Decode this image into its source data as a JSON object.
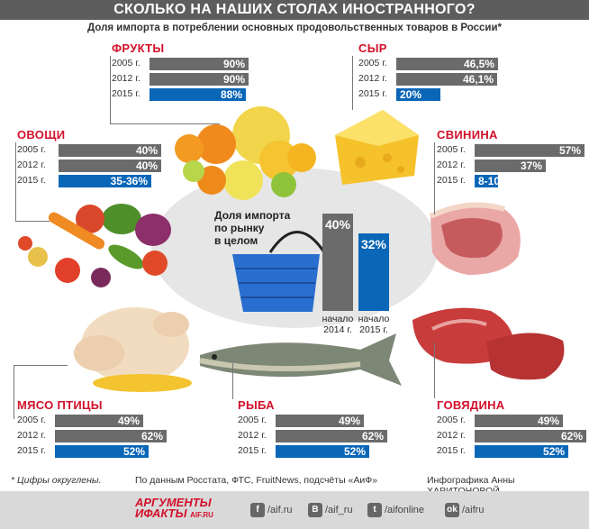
{
  "header": {
    "title": "СКОЛЬКО НА НАШИХ СТОЛАХ ИНОСТРАННОГО?",
    "subtitle": "Доля импорта в потреблении основных продовольственных товаров в России*"
  },
  "chart_data": [
    {
      "type": "bar",
      "name": "ФРУКТЫ",
      "categories": [
        "2005 г.",
        "2012 г.",
        "2015 г."
      ],
      "values": [
        90,
        90,
        88
      ],
      "labels": [
        "90%",
        "90%",
        "88%"
      ],
      "colors": [
        "#6b6b6b",
        "#6b6b6b",
        "#0a66b7"
      ],
      "xlim": [
        0,
        100
      ]
    },
    {
      "type": "bar",
      "name": "СЫР",
      "categories": [
        "2005 г.",
        "2012 г.",
        "2015 г."
      ],
      "values": [
        46.5,
        46.1,
        20
      ],
      "labels": [
        "46,5%",
        "46,1%",
        "20%"
      ],
      "colors": [
        "#6b6b6b",
        "#6b6b6b",
        "#0a66b7"
      ],
      "xlim": [
        0,
        50
      ]
    },
    {
      "type": "bar",
      "name": "ОВОЩИ",
      "categories": [
        "2005 г.",
        "2012 г.",
        "2015 г."
      ],
      "values": [
        40,
        40,
        36
      ],
      "labels": [
        "40%",
        "40%",
        "35-36%"
      ],
      "colors": [
        "#6b6b6b",
        "#6b6b6b",
        "#0a66b7"
      ],
      "xlim": [
        0,
        40
      ]
    },
    {
      "type": "bar",
      "name": "СВИНИНА",
      "categories": [
        "2005 г.",
        "2012 г.",
        "2015 г."
      ],
      "values": [
        57,
        37,
        10
      ],
      "labels": [
        "57%",
        "37%",
        "8-10%"
      ],
      "colors": [
        "#6b6b6b",
        "#6b6b6b",
        "#0a66b7"
      ],
      "xlim": [
        0,
        57
      ]
    },
    {
      "type": "bar",
      "name": "МЯСО ПТИЦЫ",
      "categories": [
        "2005 г.",
        "2012 г.",
        "2015 г."
      ],
      "values": [
        49,
        62,
        52
      ],
      "labels": [
        "49%",
        "62%",
        "52%"
      ],
      "colors": [
        "#6b6b6b",
        "#6b6b6b",
        "#0a66b7"
      ],
      "xlim": [
        0,
        62
      ]
    },
    {
      "type": "bar",
      "name": "РЫБА",
      "categories": [
        "2005 г.",
        "2012 г.",
        "2015 г."
      ],
      "values": [
        49,
        62,
        52
      ],
      "labels": [
        "49%",
        "62%",
        "52%"
      ],
      "colors": [
        "#6b6b6b",
        "#6b6b6b",
        "#0a66b7"
      ],
      "xlim": [
        0,
        62
      ]
    },
    {
      "type": "bar",
      "name": "ГОВЯДИНА",
      "categories": [
        "2005 г.",
        "2012 г.",
        "2015 г."
      ],
      "values": [
        49,
        62,
        52
      ],
      "labels": [
        "49%",
        "62%",
        "52%"
      ],
      "colors": [
        "#6b6b6b",
        "#6b6b6b",
        "#0a66b7"
      ],
      "xlim": [
        0,
        62
      ]
    },
    {
      "type": "bar",
      "name": "Доля импорта по рынку в целом",
      "categories": [
        "начало 2014 г.",
        "начало 2015 г."
      ],
      "values": [
        40,
        32
      ],
      "labels": [
        "40%",
        "32%"
      ],
      "colors": [
        "#6b6b6b",
        "#0a66b7"
      ],
      "ylim": [
        0,
        40
      ]
    }
  ],
  "center": {
    "label_lines": [
      "Доля импорта",
      "по рынку",
      "в целом"
    ],
    "bar_labels": [
      [
        "начало",
        "2014 г."
      ],
      [
        "начало",
        "2015 г."
      ]
    ]
  },
  "footer": {
    "note": "* Цифры округлены.",
    "source": "По данным Росстата, ФТС, FruitNews, подсчёты «АиФ»",
    "credit": "Инфографика Анны ХАРИТОНОВОЙ",
    "logo_top": "АРГУМЕНТЫ",
    "logo_bottom": "ИФАКТЫ",
    "logo_site": "AIF.RU",
    "social": [
      {
        "icon": "facebook-icon",
        "glyph": "f",
        "handle": "/aif.ru"
      },
      {
        "icon": "vk-icon",
        "glyph": "B",
        "handle": "/aif_ru"
      },
      {
        "icon": "twitter-icon",
        "glyph": "t",
        "handle": "/aifonline"
      },
      {
        "icon": "odnoklassniki-icon",
        "glyph": "ok",
        "handle": "/aifru"
      }
    ]
  },
  "colors": {
    "accent": "#d2102a",
    "gray_bar": "#6b6b6b",
    "blue_bar": "#0a66b7"
  }
}
